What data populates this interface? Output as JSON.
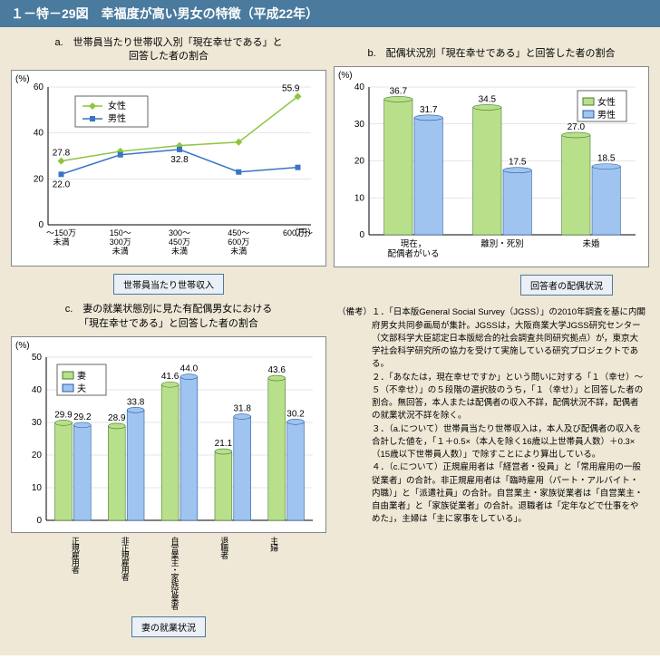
{
  "title": "１－特－29図　幸福度が高い男女の特徴（平成22年）",
  "chartA": {
    "subtitle": "a.　世帯員当たり世帯収入別「現在幸せである」と\n回答した者の割合",
    "type": "line",
    "y_unit": "(%)",
    "x_unit": "（円）",
    "ylim": [
      0,
      60
    ],
    "ytick_step": 20,
    "categories": [
      "～150万\n未満",
      "150～\n300万\n未満",
      "300～\n450万\n未満",
      "450～\n600万\n未満",
      "600万～"
    ],
    "series": [
      {
        "name": "女性",
        "color": "#8cc63f",
        "marker": "diamond",
        "values": [
          27.8,
          32.0,
          34.5,
          36.0,
          55.9
        ]
      },
      {
        "name": "男性",
        "color": "#3a75c4",
        "marker": "square",
        "values": [
          22.0,
          30.5,
          32.8,
          23.0,
          25.0
        ]
      }
    ],
    "labels_shown": {
      "女性0": "27.8",
      "男性0": "22.0",
      "男性2": "32.8",
      "女性4": "55.9"
    },
    "axis_box": "世帯員当たり世帯収入",
    "bg": "#ffffff",
    "grid_color": "#cccccc",
    "title_fontsize": 11,
    "label_fontsize": 10
  },
  "chartB": {
    "subtitle": "b.　配偶状況別「現在幸せである」と回答した者の割合",
    "type": "bar",
    "y_unit": "(%)",
    "ylim": [
      0,
      40
    ],
    "ytick_step": 10,
    "categories": [
      "現在，\n配偶者がいる",
      "離別・死別",
      "未婚"
    ],
    "series": [
      {
        "name": "女性",
        "fill": "#b8e08a",
        "stroke": "#4a7a2e",
        "values": [
          36.7,
          34.5,
          27.0
        ]
      },
      {
        "name": "男性",
        "fill": "#9fc4f0",
        "stroke": "#2a5aa0",
        "values": [
          31.7,
          17.5,
          18.5
        ]
      }
    ],
    "axis_box": "回答者の配偶状況",
    "bg": "#ffffff",
    "grid_color": "#cccccc",
    "bar_width": 0.32
  },
  "chartC": {
    "subtitle": "c.　妻の就業状態別に見た有配偶男女における\n「現在幸せである」と回答した者の割合",
    "type": "bar",
    "y_unit": "(%)",
    "ylim": [
      0,
      50
    ],
    "ytick_step": 10,
    "categories": [
      "正規雇用者",
      "非正規雇用者",
      "自営業主・\n家族従業者",
      "退職者",
      "主婦"
    ],
    "series": [
      {
        "name": "妻",
        "fill": "#b8e08a",
        "stroke": "#4a7a2e",
        "values": [
          29.9,
          28.9,
          41.6,
          21.1,
          43.6
        ]
      },
      {
        "name": "夫",
        "fill": "#9fc4f0",
        "stroke": "#2a5aa0",
        "values": [
          29.2,
          33.8,
          44.0,
          31.8,
          30.2
        ]
      }
    ],
    "axis_box": "妻の就業状況",
    "bg": "#ffffff",
    "grid_color": "#cccccc",
    "bar_width": 0.32
  },
  "notes": {
    "label": "（備考）",
    "items": [
      "１．「日本版General Social Survey（JGSS）」の2010年調査を基に内閣府男女共同参画局が集計。JGSSは，大阪商業大学JGSS研究センター（文部科学大臣認定日本版総合的社会調査共同研究拠点）が，東京大学社会科学研究所の協力を受けて実施している研究プロジェクトである。",
      "２．「あなたは，現在幸せですか」という問いに対する「１（幸せ）～５（不幸せ）」の５段階の選択肢のうち，「１（幸せ）」と回答した者の割合。無回答，本人または配偶者の収入不詳，配偶状況不詳，配偶者の就業状況不詳を除く。",
      "３．（a.について）世帯員当たり世帯収入は，本人及び配偶者の収入を合計した値を，「１＋0.5×（本人を除く16歳以上世帯員人数）＋0.3×（15歳以下世帯員人数）」で除すことにより算出している。",
      "４．（c.について）正規雇用者は「経営者・役員」と「常用雇用の一般従業者」の合計。非正規雇用者は「臨時雇用（パート・アルバイト・内職）」と「派遣社員」の合計。自営業主・家族従業者は「自営業主・自由業者」と「家族従業者」の合計。退職者は「定年などで仕事をやめた」，主婦は「主に家事をしている」。"
    ]
  }
}
